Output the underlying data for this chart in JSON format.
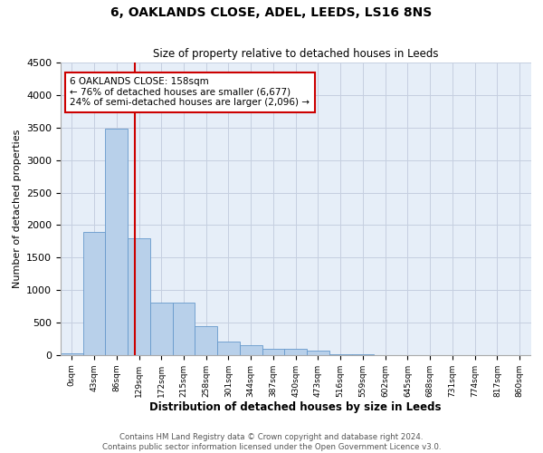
{
  "title": "6, OAKLANDS CLOSE, ADEL, LEEDS, LS16 8NS",
  "subtitle": "Size of property relative to detached houses in Leeds",
  "xlabel": "Distribution of detached houses by size in Leeds",
  "ylabel": "Number of detached properties",
  "bar_color": "#b8d0ea",
  "bar_edge_color": "#6699cc",
  "bg_color": "#e6eef8",
  "grid_color": "#c5cfe0",
  "vline_color": "#cc0000",
  "vline_position": 2.82,
  "annotation_text": "6 OAKLANDS CLOSE: 158sqm\n← 76% of detached houses are smaller (6,677)\n24% of semi-detached houses are larger (2,096) →",
  "annotation_box_color": "#ffffff",
  "annotation_box_edge": "#cc0000",
  "footer_text": "Contains HM Land Registry data © Crown copyright and database right 2024.\nContains public sector information licensed under the Open Government Licence v3.0.",
  "tick_labels": [
    "0sqm",
    "43sqm",
    "86sqm",
    "129sqm",
    "172sqm",
    "215sqm",
    "258sqm",
    "301sqm",
    "344sqm",
    "387sqm",
    "430sqm",
    "473sqm",
    "516sqm",
    "559sqm",
    "602sqm",
    "645sqm",
    "688sqm",
    "731sqm",
    "774sqm",
    "817sqm",
    "860sqm"
  ],
  "bar_heights": [
    20,
    1900,
    3490,
    1790,
    810,
    800,
    450,
    205,
    155,
    100,
    95,
    70,
    10,
    5,
    3,
    0,
    0,
    0,
    0,
    0,
    0
  ],
  "ylim": [
    0,
    4500
  ],
  "yticks": [
    0,
    500,
    1000,
    1500,
    2000,
    2500,
    3000,
    3500,
    4000,
    4500
  ],
  "figsize": [
    6.0,
    5.0
  ],
  "dpi": 100
}
